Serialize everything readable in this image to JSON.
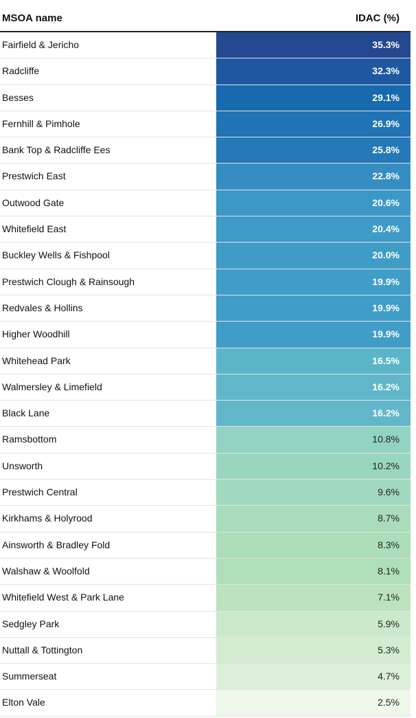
{
  "chart_data": {
    "type": "table",
    "columns": [
      "MSOA name",
      "IDAC (%)"
    ],
    "rows": [
      {
        "name": "Fairfield & Jericho",
        "value": "35.3%",
        "color": "#23488f"
      },
      {
        "name": "Radcliffe",
        "value": "32.3%",
        "color": "#1f58a1"
      },
      {
        "name": "Besses",
        "value": "29.1%",
        "color": "#176aae"
      },
      {
        "name": "Fernhill & Pimhole",
        "value": "26.9%",
        "color": "#2073b4"
      },
      {
        "name": "Bank Top & Radcliffe Ees",
        "value": "25.8%",
        "color": "#2579b8"
      },
      {
        "name": "Prestwich East",
        "value": "22.8%",
        "color": "#358dc2"
      },
      {
        "name": "Outwood Gate",
        "value": "20.6%",
        "color": "#3c98c6"
      },
      {
        "name": "Whitefield East",
        "value": "20.4%",
        "color": "#3e9ac7"
      },
      {
        "name": "Buckley Wells & Fishpool",
        "value": "20.0%",
        "color": "#3f9cc7"
      },
      {
        "name": "Prestwich Clough & Rainsough",
        "value": "19.9%",
        "color": "#409dc8"
      },
      {
        "name": "Redvales & Hollins",
        "value": "19.9%",
        "color": "#409dc8"
      },
      {
        "name": "Higher Woodhill",
        "value": "19.9%",
        "color": "#409dc8"
      },
      {
        "name": "Whitehead Park",
        "value": "16.5%",
        "color": "#5bb5c9"
      },
      {
        "name": "Walmersley & Limefield",
        "value": "16.2%",
        "color": "#61b7c9"
      },
      {
        "name": "Black Lane",
        "value": "16.2%",
        "color": "#61b7c9"
      },
      {
        "name": "Ramsbottom",
        "value": "10.8%",
        "color": "#92d3c1"
      },
      {
        "name": "Unsworth",
        "value": "10.2%",
        "color": "#99d6c0"
      },
      {
        "name": "Prestwich Central",
        "value": "9.6%",
        "color": "#a0d9be"
      },
      {
        "name": "Kirkhams & Holyrood",
        "value": "8.7%",
        "color": "#a8dcbb"
      },
      {
        "name": "Ainsworth & Bradley Fold",
        "value": "8.3%",
        "color": "#acdeb9"
      },
      {
        "name": "Walshaw & Woolfold",
        "value": "8.1%",
        "color": "#afdfb8"
      },
      {
        "name": "Whitefield West & Park Lane",
        "value": "7.1%",
        "color": "#bbe3bd"
      },
      {
        "name": "Sedgley Park",
        "value": "5.9%",
        "color": "#cbe9cb"
      },
      {
        "name": "Nuttall & Tottington",
        "value": "5.3%",
        "color": "#d3ecd0"
      },
      {
        "name": "Summerseat",
        "value": "4.7%",
        "color": "#dcf0d9"
      },
      {
        "name": "Elton Vale",
        "value": "2.5%",
        "color": "#eff8ea"
      }
    ]
  },
  "text_colors": {
    "dark_bg": "#ffffff",
    "light_bg": "#222222"
  }
}
